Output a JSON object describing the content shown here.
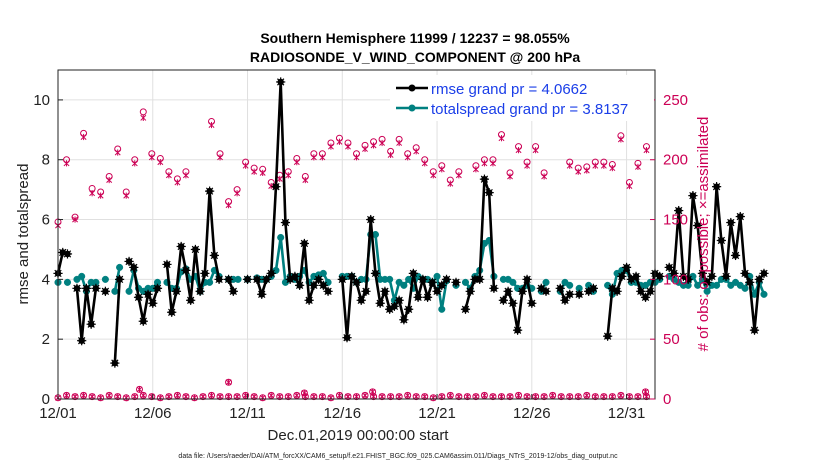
{
  "chart_data": {
    "type": "line",
    "title_line1": "Southern Hemisphere 11999 / 12237 = 98.055%",
    "title_line2": "RADIOSONDE_V_WIND_COMPONENT @ 200 hPa",
    "xlabel": "Dec.01,2019 00:00:00 start",
    "ylabel_left": "rmse and totalspread",
    "ylabel_right": "# of obs: o=possible; ×=assimilated",
    "footnote": "data file: /Users/raeder/DAI/ATM_forcXX/CAM6_setup/f.e21.FHIST_BGC.f09_025.CAM6assim.011/Diags_NTrS_2019-12/obs_diag_output.nc",
    "x_range": [
      0,
      31.5
    ],
    "y_left_range": [
      0,
      11
    ],
    "y_right_range": [
      0,
      275
    ],
    "x_ticks": [
      {
        "value": 0,
        "label": "12/01"
      },
      {
        "value": 5,
        "label": "12/06"
      },
      {
        "value": 10,
        "label": "12/11"
      },
      {
        "value": 15,
        "label": "12/16"
      },
      {
        "value": 20,
        "label": "12/21"
      },
      {
        "value": 25,
        "label": "12/26"
      },
      {
        "value": 30,
        "label": "12/31"
      }
    ],
    "y_left_ticks": [
      {
        "value": 0,
        "label": "0"
      },
      {
        "value": 2,
        "label": "2"
      },
      {
        "value": 4,
        "label": "4"
      },
      {
        "value": 6,
        "label": "6"
      },
      {
        "value": 8,
        "label": "8"
      },
      {
        "value": 10,
        "label": "10"
      }
    ],
    "y_right_ticks": [
      {
        "value": 0,
        "label": "0"
      },
      {
        "value": 50,
        "label": "50"
      },
      {
        "value": 100,
        "label": "100"
      },
      {
        "value": 150,
        "label": "150"
      },
      {
        "value": 200,
        "label": "200"
      },
      {
        "value": 250,
        "label": "250"
      }
    ],
    "legend": [
      {
        "label": "rmse grand pr = 4.0662",
        "color": "#000000"
      },
      {
        "label": "totalspread grand pr = 3.8137",
        "color": "#008080"
      }
    ],
    "colors": {
      "rmse": "#000000",
      "spread": "#008080",
      "obs": "#cc0055",
      "grid": "#e0e0e0",
      "axis": "#222222"
    },
    "x_step_days": 0.25,
    "series": [
      {
        "name": "rmse",
        "values": [
          4.2,
          4.9,
          4.85,
          null,
          3.7,
          1.95,
          3.7,
          2.5,
          3.7,
          null,
          3.6,
          null,
          1.2,
          4.0,
          null,
          4.6,
          4.4,
          3.4,
          2.6,
          3.5,
          3.2,
          3.7,
          null,
          4.5,
          2.9,
          3.6,
          5.1,
          4.3,
          3.3,
          5.0,
          3.6,
          4.2,
          6.95,
          4.8,
          4.0,
          null,
          4.0,
          3.6,
          null,
          null,
          4.0,
          null,
          4.0,
          3.5,
          4.0,
          4.2,
          7.1,
          10.6,
          5.9,
          4.0,
          4.1,
          3.8,
          5.2,
          3.3,
          3.8,
          4.0,
          3.8,
          3.6,
          null,
          null,
          4.0,
          2.05,
          4.1,
          3.9,
          3.3,
          3.6,
          6.0,
          4.2,
          3.2,
          3.6,
          3.0,
          3.1,
          3.3,
          2.65,
          3.0,
          4.2,
          3.4,
          4.0,
          3.4,
          3.9,
          3.6,
          3.8,
          4.0,
          null,
          3.9,
          null,
          3.0,
          3.6,
          4.0,
          4.0,
          7.35,
          6.9,
          3.7,
          null,
          3.3,
          3.6,
          3.2,
          2.3,
          3.6,
          4.0,
          3.2,
          null,
          3.7,
          3.6,
          null,
          null,
          3.7,
          3.3,
          3.5,
          null,
          3.5,
          null,
          3.6,
          3.7,
          null,
          null,
          2.1,
          3.7,
          3.6,
          4.1,
          4.4,
          4.0,
          4.1,
          3.6,
          3.4,
          3.6,
          4.2,
          4.1,
          null,
          4.4,
          4.2,
          6.3,
          4.1,
          4.0,
          6.8,
          5.8,
          4.2,
          3.9,
          4.1,
          7.1,
          5.3,
          4.1,
          5.9,
          4.8,
          6.1,
          4.2,
          3.9,
          2.3,
          4.0,
          4.2
        ]
      },
      {
        "name": "totalspread",
        "values": [
          3.9,
          null,
          3.9,
          null,
          4.0,
          4.1,
          3.6,
          3.9,
          3.9,
          null,
          4.0,
          null,
          3.6,
          4.4,
          null,
          3.6,
          4.3,
          3.7,
          3.6,
          3.7,
          3.7,
          3.9,
          null,
          3.9,
          3.7,
          3.7,
          4.25,
          4.35,
          4.0,
          4.1,
          3.6,
          3.9,
          3.9,
          4.3,
          4.1,
          null,
          4.0,
          4.0,
          4.0,
          null,
          4.0,
          null,
          4.05,
          4.0,
          4.0,
          4.1,
          4.3,
          5.4,
          3.9,
          4.1,
          4.0,
          4.1,
          4.3,
          3.9,
          4.1,
          4.15,
          4.2,
          3.9,
          null,
          null,
          4.1,
          4.1,
          4.1,
          3.9,
          4.0,
          4.0,
          5.5,
          5.5,
          4.0,
          4.0,
          4.0,
          3.3,
          3.9,
          3.8,
          4.0,
          3.7,
          4.1,
          4.0,
          4.0,
          3.9,
          4.1,
          3.0,
          3.95,
          null,
          3.8,
          null,
          3.9,
          3.7,
          4.1,
          4.3,
          5.2,
          5.3,
          4.1,
          null,
          4.0,
          4.0,
          3.9,
          3.7,
          3.7,
          3.8,
          3.7,
          null,
          3.6,
          3.9,
          null,
          null,
          3.6,
          3.9,
          3.8,
          null,
          3.7,
          null,
          3.8,
          3.6,
          null,
          null,
          3.8,
          3.5,
          4.2,
          4.3,
          4.3,
          3.9,
          3.9,
          3.8,
          3.8,
          3.9,
          3.9,
          4.0,
          null,
          4.1,
          4.0,
          3.9,
          3.8,
          3.8,
          4.1,
          3.8,
          4.0,
          3.6,
          3.8,
          3.8,
          4.0,
          4.0,
          3.8,
          3.9,
          3.8,
          3.7,
          4.1,
          3.5,
          3.9,
          3.5
        ]
      }
    ],
    "obs_possible": [
      148,
      200,
      152,
      222,
      176,
      173,
      186,
      209,
      173,
      200,
      240,
      205,
      201,
      190,
      184,
      190,
      null,
      null,
      232,
      205,
      165,
      175,
      198,
      193,
      192,
      181,
      187,
      190,
      201,
      186,
      205,
      205,
      214,
      218,
      214,
      205,
      212,
      215,
      217,
      207,
      217,
      205,
      210,
      200,
      190,
      195,
      183,
      190,
      null,
      195,
      200,
      200,
      221,
      189,
      211,
      198,
      211,
      189,
      null,
      null,
      198,
      193,
      194,
      198,
      198,
      196,
      220,
      181,
      197,
      211
    ],
    "obs_assim": [
      145,
      197,
      150,
      219,
      172,
      170,
      183,
      206,
      170,
      197,
      235,
      202,
      198,
      187,
      181,
      187,
      null,
      null,
      229,
      202,
      162,
      172,
      195,
      190,
      189,
      178,
      184,
      187,
      198,
      183,
      202,
      202,
      211,
      215,
      211,
      202,
      209,
      212,
      214,
      204,
      214,
      202,
      207,
      197,
      187,
      192,
      180,
      187,
      null,
      192,
      197,
      197,
      218,
      186,
      208,
      195,
      208,
      186,
      null,
      null,
      195,
      190,
      191,
      195,
      195,
      193,
      217,
      178,
      194,
      208
    ],
    "obs_small_possible": [
      1,
      3,
      2,
      3,
      2,
      1,
      3,
      2,
      1,
      2,
      3,
      2,
      1,
      2,
      3,
      2,
      1,
      2,
      3,
      2,
      2,
      2,
      3,
      2,
      1,
      3,
      2,
      2,
      3,
      2,
      2,
      2,
      1,
      3,
      2,
      2,
      3,
      2,
      2,
      2,
      2,
      3,
      2,
      2,
      1,
      2,
      3,
      2,
      2,
      2,
      3,
      2,
      2,
      2,
      3,
      2,
      2,
      2,
      3,
      2,
      2,
      2,
      3,
      2,
      2,
      2,
      3,
      2,
      2,
      2
    ],
    "obs_small_extra": [
      {
        "day": 4.3,
        "n": 8
      },
      {
        "day": 9.0,
        "n": 14
      },
      {
        "day": 13.0,
        "n": 5
      },
      {
        "day": 16.6,
        "n": 6
      },
      {
        "day": 31.0,
        "n": 6
      }
    ]
  }
}
